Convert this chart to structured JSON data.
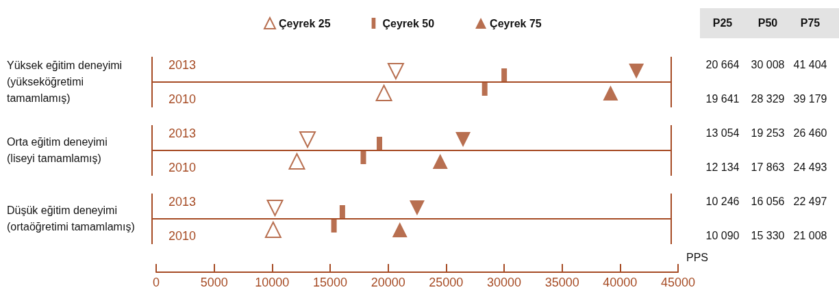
{
  "chart_data": {
    "type": "scatter",
    "orientation": "horizontal",
    "xlabel": "PPS",
    "categories": [
      "2013",
      "2010",
      "2013",
      "2010",
      "2013",
      "2010"
    ],
    "series": [
      {
        "name": "Çeyrek 25",
        "color": "#a64b24",
        "marker": "triangle",
        "values": [
          20664,
          19641,
          13054,
          12134,
          10246,
          10090
        ],
        "value_labels": [
          "20 664",
          "19 641",
          "13 054",
          "12 134",
          "10 246",
          "10 090"
        ]
      },
      {
        "name": "Çeyrek 50",
        "color": "#a64b24",
        "marker": "square",
        "values": [
          30008,
          28329,
          19253,
          17863,
          16056,
          15330
        ],
        "value_labels": [
          "30 008",
          "28 329",
          "19 253",
          "17 863",
          "16 056",
          "15 330"
        ]
      },
      {
        "name": "Çeyrek 75",
        "color": "#a64b24",
        "marker": "triangle",
        "values": [
          41404,
          39179,
          26460,
          24493,
          22497,
          21008
        ],
        "value_labels": [
          "41 404",
          "39 179",
          "26 460",
          "24 493",
          "22 497",
          "21 008"
        ]
      }
    ],
    "xlim": [
      0,
      45000
    ],
    "xticks": [
      0,
      5000,
      10000,
      15000,
      20000,
      25000,
      30000,
      35000,
      40000,
      45000
    ],
    "grid": false,
    "legend": "top",
    "annotations": [
      "Yüksek eğitim deneyimi\n(yükseköğretimi\ntamamlamış)",
      "Orta eğitim deneyimi\n(liseyi tamamlamış)",
      "Düşük eğitim deneyimi\n(ortaöğretimi tamamlamış)",
      "P25",
      "P50",
      "P75"
    ]
  }
}
